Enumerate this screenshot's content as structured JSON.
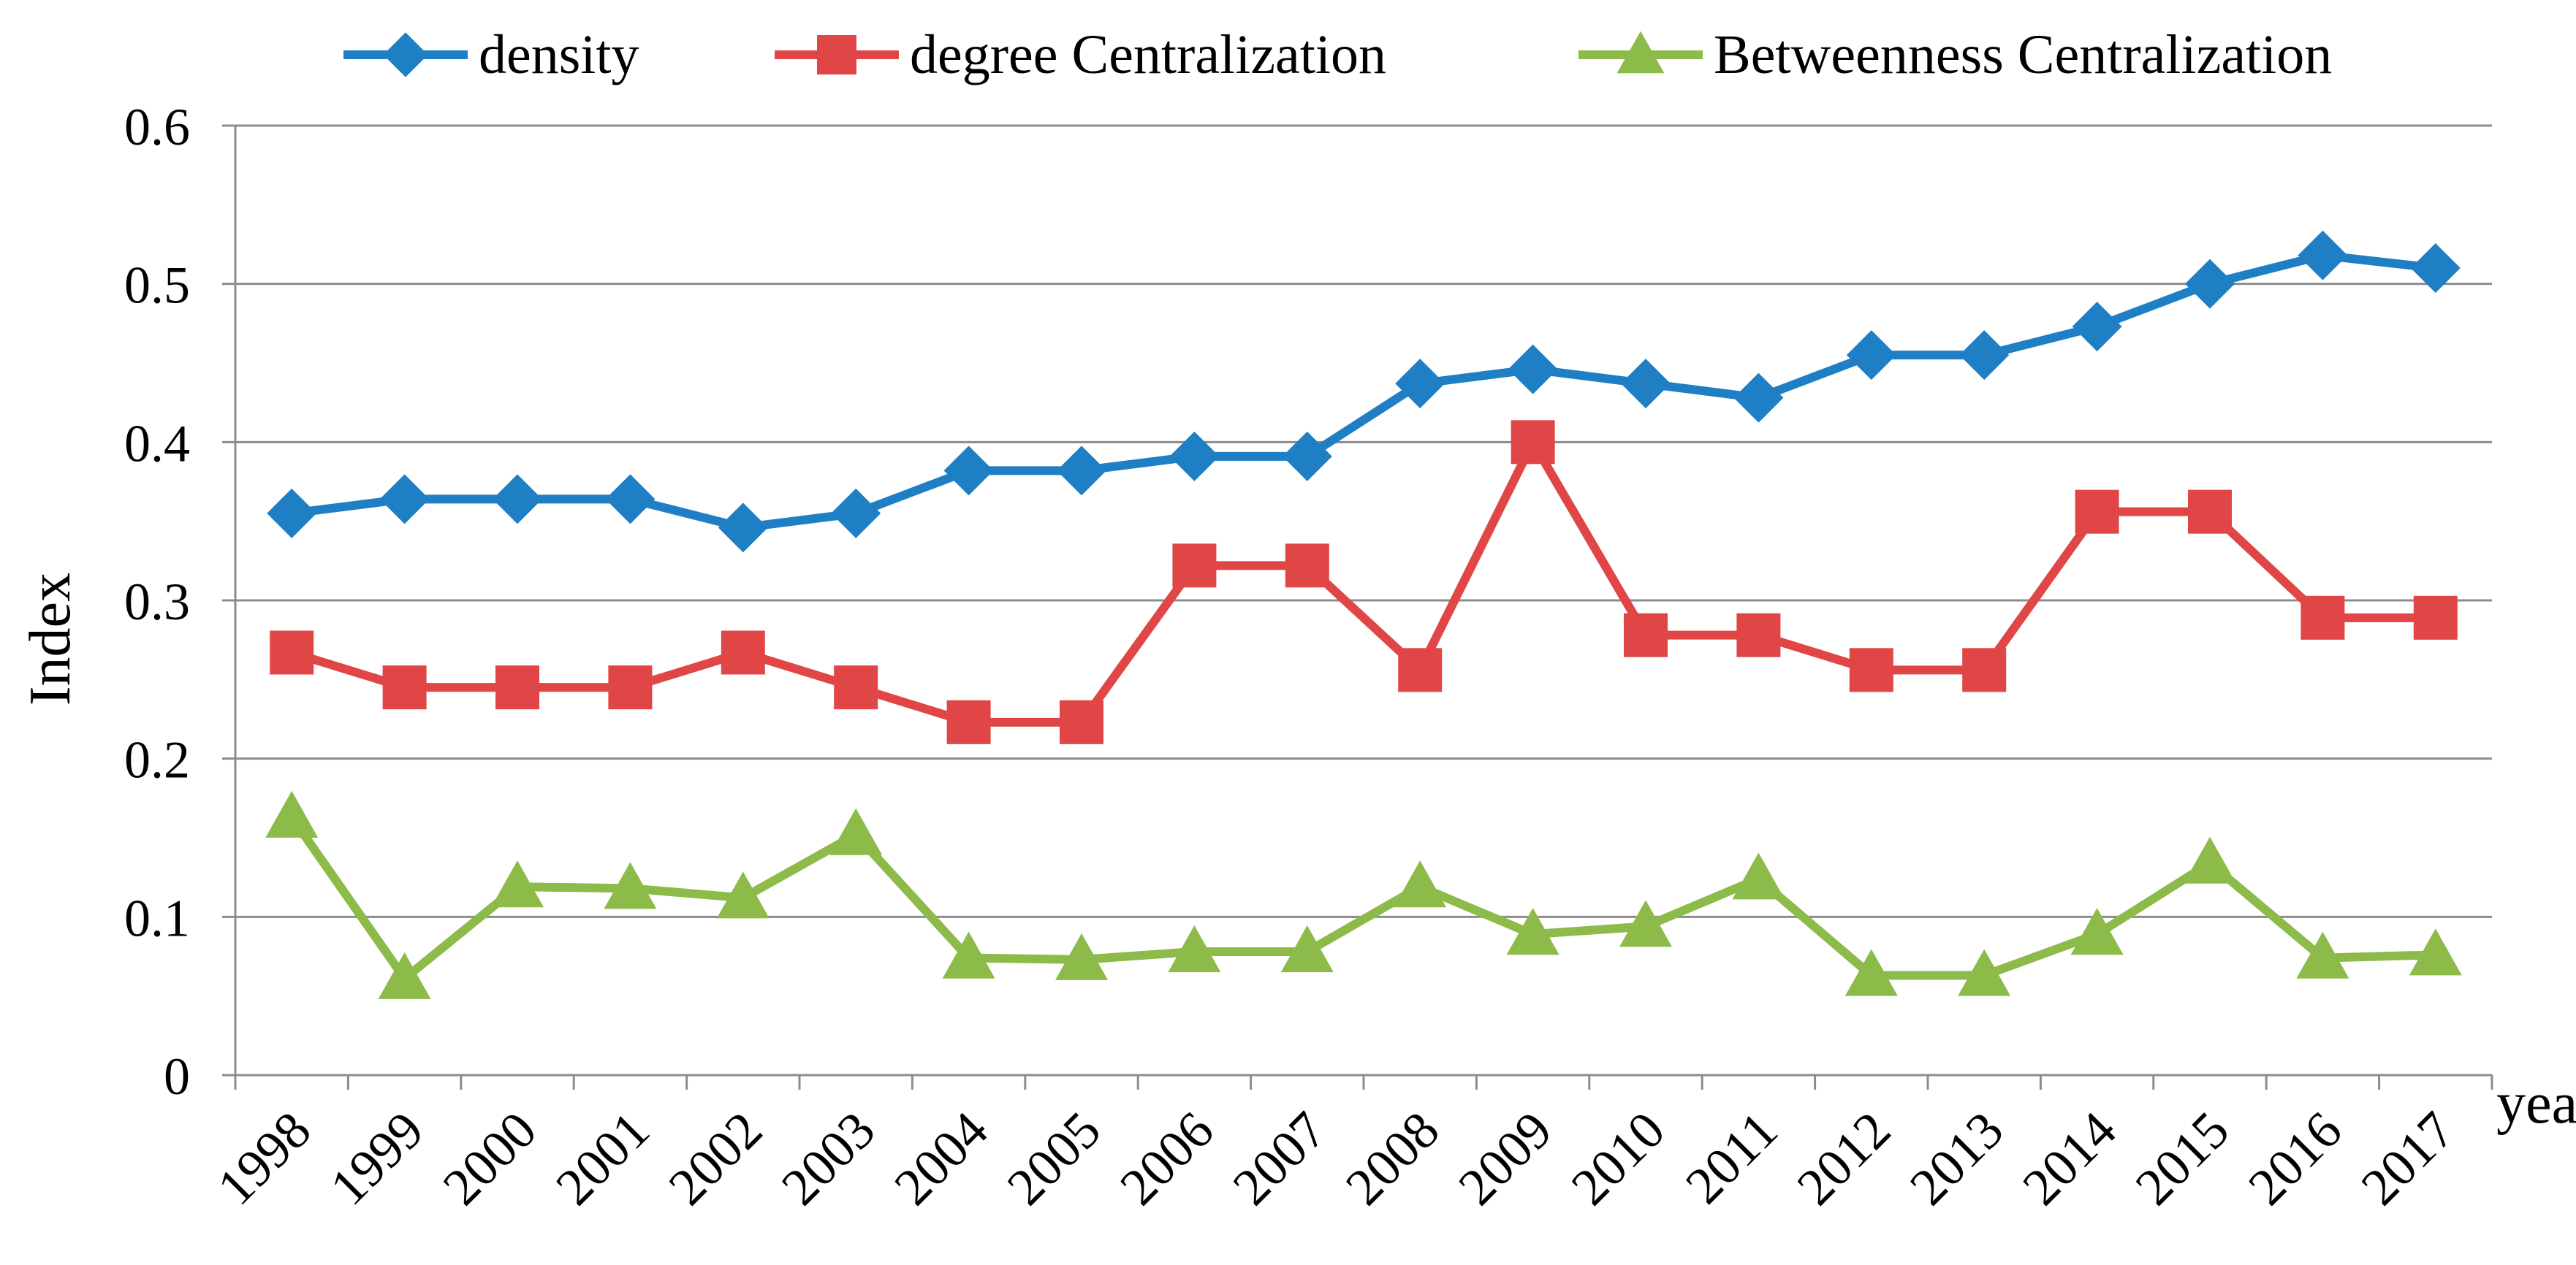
{
  "chart_data": {
    "type": "line",
    "title": "",
    "xlabel": "year",
    "ylabel": "Index",
    "ylim": [
      0,
      0.6
    ],
    "yticks": [
      "0",
      "0.1",
      "0.2",
      "0.3",
      "0.4",
      "0.5",
      "0.6"
    ],
    "grid": "horizontal",
    "legend_position": "top",
    "categories": [
      "1998",
      "1999",
      "2000",
      "2001",
      "2002",
      "2003",
      "2004",
      "2005",
      "2006",
      "2007",
      "2008",
      "2009",
      "2010",
      "2011",
      "2012",
      "2013",
      "2014",
      "2015",
      "2016",
      "2017"
    ],
    "series": [
      {
        "name": "density",
        "marker": "diamond",
        "color": "#1f7fc4",
        "values": [
          0.355,
          0.364,
          0.364,
          0.364,
          0.346,
          0.355,
          0.382,
          0.382,
          0.391,
          0.391,
          0.437,
          0.446,
          0.437,
          0.428,
          0.455,
          0.455,
          0.473,
          0.5,
          0.518,
          0.51
        ]
      },
      {
        "name": "degree Centralization",
        "marker": "square",
        "color": "#e04646",
        "values": [
          0.267,
          0.245,
          0.245,
          0.245,
          0.267,
          0.245,
          0.223,
          0.223,
          0.322,
          0.322,
          0.256,
          0.4,
          0.278,
          0.278,
          0.256,
          0.256,
          0.356,
          0.356,
          0.289,
          0.289
        ]
      },
      {
        "name": "Betweenness Centralization",
        "marker": "triangle",
        "color": "#8dbb4a",
        "values": [
          0.163,
          0.061,
          0.119,
          0.118,
          0.112,
          0.152,
          0.074,
          0.073,
          0.078,
          0.078,
          0.119,
          0.089,
          0.094,
          0.124,
          0.063,
          0.063,
          0.089,
          0.134,
          0.074,
          0.076
        ]
      }
    ]
  }
}
